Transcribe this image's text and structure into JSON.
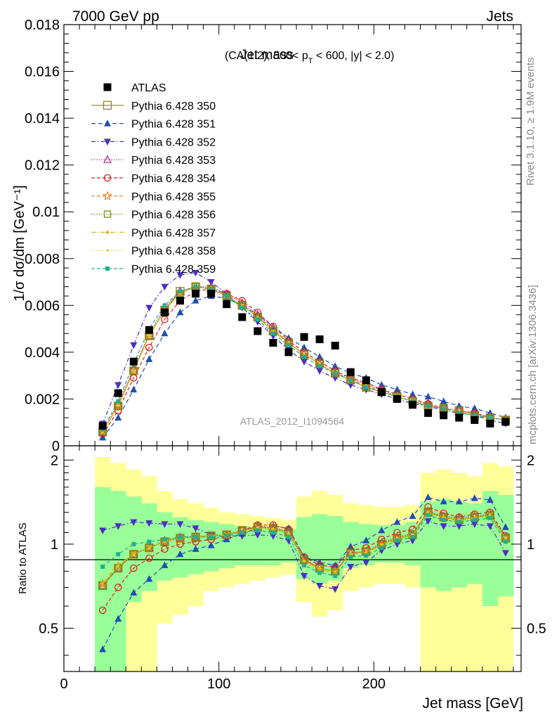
{
  "header": {
    "left": "7000 GeV pp",
    "right": "Jets"
  },
  "side_labels": {
    "rivet": "Rivet 3.1.10, ≥ 1.9M events",
    "mcplots": "mcplots.cern.ch [arXiv:1306.3436]"
  },
  "chart_data": [
    {
      "type": "scatter",
      "panel": "main",
      "title": "Jet mass",
      "subtitle_parts": [
        "(CA(1.2), 500< p",
        "T",
        " < 600, |y| < 2.0)"
      ],
      "ylabel": "1/σ dσ/dm [GeV⁻¹]",
      "watermark": "ATLAS_2012_I1094564",
      "xlim": [
        0,
        295
      ],
      "ylim": [
        0,
        0.018
      ],
      "y_ticks": [
        0,
        0.002,
        0.004,
        0.006,
        0.008,
        0.01,
        0.012,
        0.014,
        0.016,
        0.018
      ],
      "y_tick_labels": [
        "0",
        "0.002",
        "0.004",
        "0.006",
        "0.008",
        "0.01",
        "0.012",
        "0.014",
        "0.016",
        "0.018"
      ],
      "legend_position": "top-left",
      "x": [
        25,
        35,
        45,
        55,
        65,
        75,
        85,
        95,
        105,
        115,
        125,
        135,
        145,
        155,
        165,
        175,
        185,
        195,
        205,
        215,
        225,
        235,
        245,
        255,
        265,
        275,
        285
      ],
      "data": {
        "name": "ATLAS",
        "y": [
          0.00085,
          0.00225,
          0.0036,
          0.00495,
          0.0057,
          0.0062,
          0.0065,
          0.0065,
          0.00605,
          0.0055,
          0.0049,
          0.0044,
          0.004,
          0.00465,
          0.00455,
          0.00428,
          0.00315,
          0.0028,
          0.0023,
          0.002,
          0.00175,
          0.0014,
          0.0013,
          0.0012,
          0.0011,
          0.00095,
          0.00102
        ]
      },
      "series": [
        {
          "name": "Pythia 6.428 350",
          "color": "#8c8c1a",
          "marker": "square-open",
          "dash": "solid",
          "y": [
            0.0006,
            0.0017,
            0.0032,
            0.0047,
            0.0058,
            0.0066,
            0.0068,
            0.0067,
            0.0064,
            0.006,
            0.0055,
            0.0049,
            0.0044,
            0.0039,
            0.0035,
            0.0031,
            0.0028,
            0.0025,
            0.0023,
            0.0021,
            0.0019,
            0.0017,
            0.0016,
            0.0015,
            0.0013,
            0.0012,
            0.0011
          ]
        },
        {
          "name": "Pythia 6.428 351",
          "color": "#1f4fb5",
          "marker": "triangle-up",
          "dash": "6,4",
          "y": [
            0.00035,
            0.0012,
            0.0024,
            0.0037,
            0.0048,
            0.0057,
            0.0062,
            0.0064,
            0.0063,
            0.006,
            0.0056,
            0.0051,
            0.0046,
            0.0042,
            0.0038,
            0.0034,
            0.0031,
            0.0029,
            0.0026,
            0.0024,
            0.0022,
            0.0021,
            0.0019,
            0.0017,
            0.0016,
            0.0014,
            0.0012
          ]
        },
        {
          "name": "Pythia 6.428 352",
          "color": "#4b2fc2",
          "marker": "triangle-down",
          "dash": "6,3,1.5,3",
          "y": [
            0.00095,
            0.0026,
            0.0043,
            0.0059,
            0.0068,
            0.0073,
            0.0074,
            0.007,
            0.0065,
            0.0059,
            0.0053,
            0.0047,
            0.0041,
            0.0036,
            0.0032,
            0.0029,
            0.0026,
            0.0024,
            0.0022,
            0.002,
            0.0018,
            0.0017,
            0.0015,
            0.0014,
            0.0013,
            0.0011,
            0.00095
          ]
        },
        {
          "name": "Pythia 6.428 353",
          "color": "#b02a8f",
          "marker": "triangle-up-open",
          "dash": "1.5,2",
          "y": [
            0.0006,
            0.0018,
            0.0033,
            0.0048,
            0.0059,
            0.0066,
            0.0068,
            0.0068,
            0.0065,
            0.0061,
            0.0056,
            0.005,
            0.0044,
            0.0039,
            0.0035,
            0.0031,
            0.0029,
            0.0026,
            0.0024,
            0.0021,
            0.0019,
            0.0018,
            0.0016,
            0.0015,
            0.0014,
            0.0012,
            0.0011
          ]
        },
        {
          "name": "Pythia 6.428 354",
          "color": "#d91f1f",
          "marker": "circle-open",
          "dash": "5,3",
          "y": [
            0.0005,
            0.0015,
            0.0029,
            0.0042,
            0.0054,
            0.0062,
            0.0066,
            0.0067,
            0.0065,
            0.0062,
            0.0057,
            0.0051,
            0.0045,
            0.004,
            0.0036,
            0.0032,
            0.0029,
            0.0027,
            0.0024,
            0.0022,
            0.002,
            0.0018,
            0.0016,
            0.0015,
            0.0014,
            0.0012,
            0.0011
          ]
        },
        {
          "name": "Pythia 6.428 355",
          "color": "#f07818",
          "marker": "star-open",
          "dash": "5,3",
          "y": [
            0.0006,
            0.0017,
            0.0032,
            0.0047,
            0.0058,
            0.0065,
            0.0068,
            0.0067,
            0.0064,
            0.006,
            0.0055,
            0.005,
            0.0044,
            0.0039,
            0.0035,
            0.0031,
            0.0028,
            0.0026,
            0.0023,
            0.0021,
            0.0019,
            0.0017,
            0.0016,
            0.0015,
            0.0013,
            0.0012,
            0.0011
          ]
        },
        {
          "name": "Pythia 6.428 356",
          "color": "#7a8a1a",
          "marker": "square-open-small",
          "dash": "1.5,2",
          "y": [
            0.0006,
            0.0017,
            0.0032,
            0.0047,
            0.0058,
            0.0065,
            0.0068,
            0.0067,
            0.0064,
            0.006,
            0.0055,
            0.0049,
            0.0044,
            0.0039,
            0.0035,
            0.0031,
            0.0028,
            0.0025,
            0.0023,
            0.0021,
            0.0019,
            0.0017,
            0.0016,
            0.0015,
            0.0013,
            0.0012,
            0.0011
          ]
        },
        {
          "name": "Pythia 6.428 357",
          "color": "#d4b400",
          "marker": "dot",
          "dash": "6,3,1.5,3",
          "y": [
            0.0006,
            0.0017,
            0.0032,
            0.0047,
            0.0058,
            0.0065,
            0.0068,
            0.0067,
            0.0064,
            0.006,
            0.0055,
            0.0049,
            0.0044,
            0.0039,
            0.0035,
            0.0031,
            0.0028,
            0.0025,
            0.0023,
            0.0021,
            0.0019,
            0.0017,
            0.0016,
            0.0015,
            0.0013,
            0.0012,
            0.0011
          ]
        },
        {
          "name": "Pythia 6.428 358",
          "color": "#c8d41c",
          "marker": "dot-small",
          "dash": "1.5,2",
          "y": [
            0.0006,
            0.0017,
            0.0032,
            0.0047,
            0.0058,
            0.0065,
            0.0068,
            0.0067,
            0.0064,
            0.006,
            0.0055,
            0.0049,
            0.0044,
            0.0039,
            0.0035,
            0.0031,
            0.0028,
            0.0025,
            0.0023,
            0.0021,
            0.0019,
            0.0017,
            0.0016,
            0.0015,
            0.0013,
            0.0012,
            0.0011
          ]
        },
        {
          "name": "Pythia 6.428 359",
          "color": "#20b090",
          "marker": "square-filled-small",
          "dash": "5,3",
          "y": [
            0.0007,
            0.0019,
            0.0035,
            0.005,
            0.006,
            0.0066,
            0.0068,
            0.0067,
            0.0064,
            0.0059,
            0.0054,
            0.0048,
            0.0043,
            0.0038,
            0.0034,
            0.0031,
            0.0028,
            0.0025,
            0.0023,
            0.0021,
            0.0019,
            0.0017,
            0.0016,
            0.0014,
            0.0013,
            0.0012,
            0.0011
          ]
        }
      ]
    },
    {
      "type": "scatter",
      "panel": "ratio",
      "ylabel": "Ratio to ATLAS",
      "xlabel": "Jet mass [GeV]",
      "xlim": [
        0,
        295
      ],
      "ylim": [
        0.35,
        2.25
      ],
      "x_ticks": [
        0,
        100,
        200
      ],
      "x_tick_labels": [
        "0",
        "100",
        "200"
      ],
      "y_ticks": [
        0.5,
        1,
        2
      ],
      "y_tick_labels": [
        "0.5",
        "1",
        "2"
      ],
      "bins": [
        20,
        30,
        40,
        50,
        60,
        70,
        80,
        90,
        100,
        110,
        120,
        130,
        140,
        150,
        160,
        170,
        180,
        190,
        200,
        210,
        220,
        230,
        240,
        250,
        260,
        270,
        280,
        290
      ],
      "band_outer": {
        "lo": [
          0.35,
          0.35,
          0.35,
          0.35,
          0.52,
          0.56,
          0.6,
          0.68,
          0.7,
          0.72,
          0.74,
          0.76,
          0.78,
          0.62,
          0.55,
          0.58,
          0.68,
          0.7,
          0.72,
          0.72,
          0.7,
          0.35,
          0.35,
          0.35,
          0.35,
          0.35,
          0.35
        ],
        "hi": [
          2.05,
          1.95,
          1.85,
          1.75,
          1.55,
          1.45,
          1.4,
          1.35,
          1.3,
          1.28,
          1.26,
          1.24,
          1.22,
          1.48,
          1.55,
          1.5,
          1.4,
          1.38,
          1.36,
          1.36,
          1.38,
          1.8,
          1.85,
          1.8,
          1.75,
          1.95,
          1.9
        ]
      },
      "band_inner": {
        "lo": [
          0.35,
          0.35,
          0.62,
          0.68,
          0.74,
          0.76,
          0.78,
          0.8,
          0.82,
          0.84,
          0.84,
          0.84,
          0.86,
          0.75,
          0.72,
          0.74,
          0.82,
          0.84,
          0.86,
          0.86,
          0.84,
          0.7,
          0.68,
          0.7,
          0.72,
          0.6,
          0.65
        ],
        "hi": [
          1.6,
          1.55,
          1.48,
          1.4,
          1.3,
          1.25,
          1.22,
          1.2,
          1.18,
          1.16,
          1.15,
          1.14,
          1.13,
          1.25,
          1.28,
          1.26,
          1.2,
          1.18,
          1.17,
          1.17,
          1.2,
          1.42,
          1.45,
          1.42,
          1.4,
          1.55,
          1.5
        ]
      },
      "x": [
        25,
        35,
        45,
        55,
        65,
        75,
        85,
        95,
        105,
        115,
        125,
        135,
        145,
        155,
        165,
        175,
        185,
        195,
        205,
        215,
        225,
        235,
        245,
        255,
        265,
        275,
        285
      ],
      "series": [
        {
          "name": "Pythia 6.428 350",
          "y": [
            0.71,
            0.82,
            0.92,
            0.97,
            1.02,
            1.05,
            1.06,
            1.07,
            1.08,
            1.12,
            1.15,
            1.14,
            1.1,
            0.88,
            0.82,
            0.8,
            0.93,
            0.94,
            1.0,
            1.05,
            1.08,
            1.3,
            1.25,
            1.22,
            1.25,
            1.27,
            1.05
          ]
        },
        {
          "name": "Pythia 6.428 351",
          "y": [
            0.42,
            0.54,
            0.67,
            0.75,
            0.84,
            0.92,
            0.96,
            0.99,
            1.04,
            1.09,
            1.14,
            1.16,
            1.14,
            0.9,
            0.86,
            0.84,
            0.98,
            1.03,
            1.12,
            1.2,
            1.26,
            1.47,
            1.42,
            1.42,
            1.46,
            1.44,
            1.15
          ]
        },
        {
          "name": "Pythia 6.428 352",
          "y": [
            1.12,
            1.16,
            1.2,
            1.19,
            1.18,
            1.18,
            1.14,
            1.08,
            1.07,
            1.07,
            1.08,
            1.07,
            1.03,
            0.77,
            0.71,
            0.69,
            0.83,
            0.86,
            0.95,
            1.0,
            1.03,
            1.21,
            1.16,
            1.16,
            1.18,
            1.16,
            0.93
          ]
        },
        {
          "name": "Pythia 6.428 353",
          "y": [
            0.71,
            0.82,
            0.92,
            0.97,
            1.03,
            1.06,
            1.07,
            1.07,
            1.08,
            1.12,
            1.16,
            1.15,
            1.11,
            0.88,
            0.82,
            0.8,
            0.93,
            0.94,
            1.01,
            1.06,
            1.09,
            1.31,
            1.26,
            1.24,
            1.26,
            1.28,
            1.06
          ]
        },
        {
          "name": "Pythia 6.428 354",
          "y": [
            0.58,
            0.7,
            0.82,
            0.89,
            0.96,
            1.0,
            1.02,
            1.04,
            1.07,
            1.12,
            1.17,
            1.17,
            1.13,
            0.9,
            0.84,
            0.83,
            0.95,
            0.97,
            1.04,
            1.1,
            1.13,
            1.36,
            1.29,
            1.25,
            1.28,
            1.3,
            1.07
          ]
        },
        {
          "name": "Pythia 6.428 355",
          "y": [
            0.72,
            0.83,
            0.92,
            0.97,
            1.02,
            1.05,
            1.06,
            1.07,
            1.08,
            1.12,
            1.15,
            1.14,
            1.1,
            0.87,
            0.82,
            0.8,
            0.93,
            0.94,
            1.0,
            1.05,
            1.08,
            1.3,
            1.25,
            1.22,
            1.25,
            1.27,
            1.05
          ]
        },
        {
          "name": "Pythia 6.428 356",
          "y": [
            0.71,
            0.82,
            0.92,
            0.97,
            1.02,
            1.05,
            1.06,
            1.07,
            1.08,
            1.12,
            1.15,
            1.14,
            1.1,
            0.88,
            0.82,
            0.8,
            0.93,
            0.94,
            1.0,
            1.05,
            1.08,
            1.3,
            1.25,
            1.22,
            1.25,
            1.27,
            1.05
          ]
        },
        {
          "name": "Pythia 6.428 357",
          "y": [
            0.73,
            0.84,
            0.93,
            0.97,
            1.02,
            1.05,
            1.06,
            1.07,
            1.08,
            1.11,
            1.14,
            1.13,
            1.09,
            0.87,
            0.81,
            0.79,
            0.92,
            0.93,
            0.99,
            1.04,
            1.07,
            1.29,
            1.24,
            1.21,
            1.24,
            1.26,
            1.04
          ]
        },
        {
          "name": "Pythia 6.428 358",
          "y": [
            0.72,
            0.83,
            0.92,
            0.97,
            1.02,
            1.05,
            1.06,
            1.07,
            1.08,
            1.11,
            1.15,
            1.14,
            1.1,
            0.87,
            0.82,
            0.8,
            0.92,
            0.94,
            1.0,
            1.05,
            1.08,
            1.3,
            1.25,
            1.22,
            1.25,
            1.27,
            1.05
          ]
        },
        {
          "name": "Pythia 6.428 359",
          "y": [
            0.83,
            0.92,
            1.0,
            1.02,
            1.04,
            1.06,
            1.06,
            1.06,
            1.07,
            1.1,
            1.12,
            1.1,
            1.06,
            0.84,
            0.79,
            0.77,
            0.9,
            0.91,
            0.97,
            1.03,
            1.06,
            1.27,
            1.22,
            1.2,
            1.22,
            1.24,
            1.02
          ]
        }
      ]
    }
  ]
}
